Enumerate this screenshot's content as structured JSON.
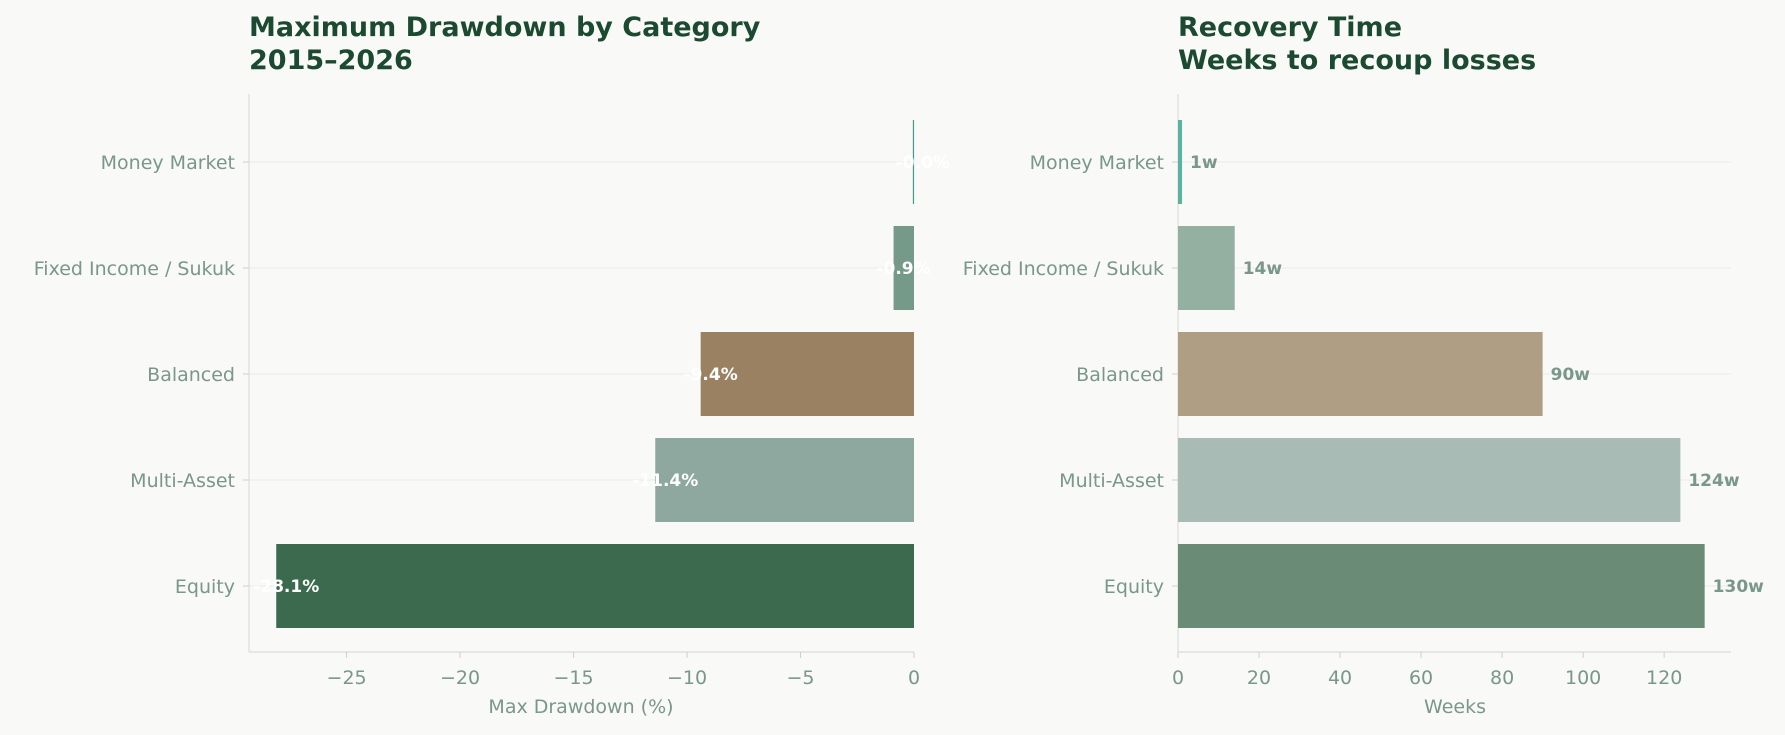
{
  "chart_data": [
    {
      "type": "bar",
      "orientation": "horizontal",
      "title": "Maximum Drawdown by Category",
      "subtitle": "2015–2026",
      "xlabel": "Max Drawdown (%)",
      "ylabel": "",
      "categories": [
        "Money Market",
        "Fixed Income / Sukuk",
        "Balanced",
        "Multi-Asset",
        "Equity"
      ],
      "values": [
        -0.05,
        -0.9,
        -9.4,
        -11.4,
        -28.1
      ],
      "value_labels": [
        "-0.0%",
        "-0.9%",
        "-9.4%",
        "-11.4%",
        "-28.1%"
      ],
      "colors": [
        "#3f9e8a",
        "#769a89",
        "#9a8162",
        "#8fa89f",
        "#3c6a4f"
      ],
      "xlim": [
        -29.3,
        0
      ],
      "xticks": [
        -25,
        -20,
        -15,
        -10,
        -5,
        0
      ],
      "xtick_labels": [
        "−25",
        "−20",
        "−15",
        "−10",
        "−5",
        "0"
      ],
      "grid": "horizontal lines at categories"
    },
    {
      "type": "bar",
      "orientation": "horizontal",
      "title": "Recovery Time",
      "subtitle": "Weeks to recoup losses",
      "xlabel": "Weeks",
      "ylabel": "",
      "categories": [
        "Money Market",
        "Fixed Income / Sukuk",
        "Balanced",
        "Multi-Asset",
        "Equity"
      ],
      "values": [
        1,
        14,
        90,
        124,
        130
      ],
      "value_labels": [
        "1w",
        "14w",
        "90w",
        "124w",
        "130w"
      ],
      "colors": [
        "#5ab3a1",
        "#93b0a1",
        "#b09e84",
        "#a8bbb4",
        "#6a8b76"
      ],
      "xlim": [
        0,
        136.5
      ],
      "xticks": [
        0,
        20,
        40,
        60,
        80,
        100,
        120
      ],
      "xtick_labels": [
        "0",
        "20",
        "40",
        "60",
        "80",
        "100",
        "120"
      ],
      "grid": "horizontal lines at categories"
    }
  ]
}
